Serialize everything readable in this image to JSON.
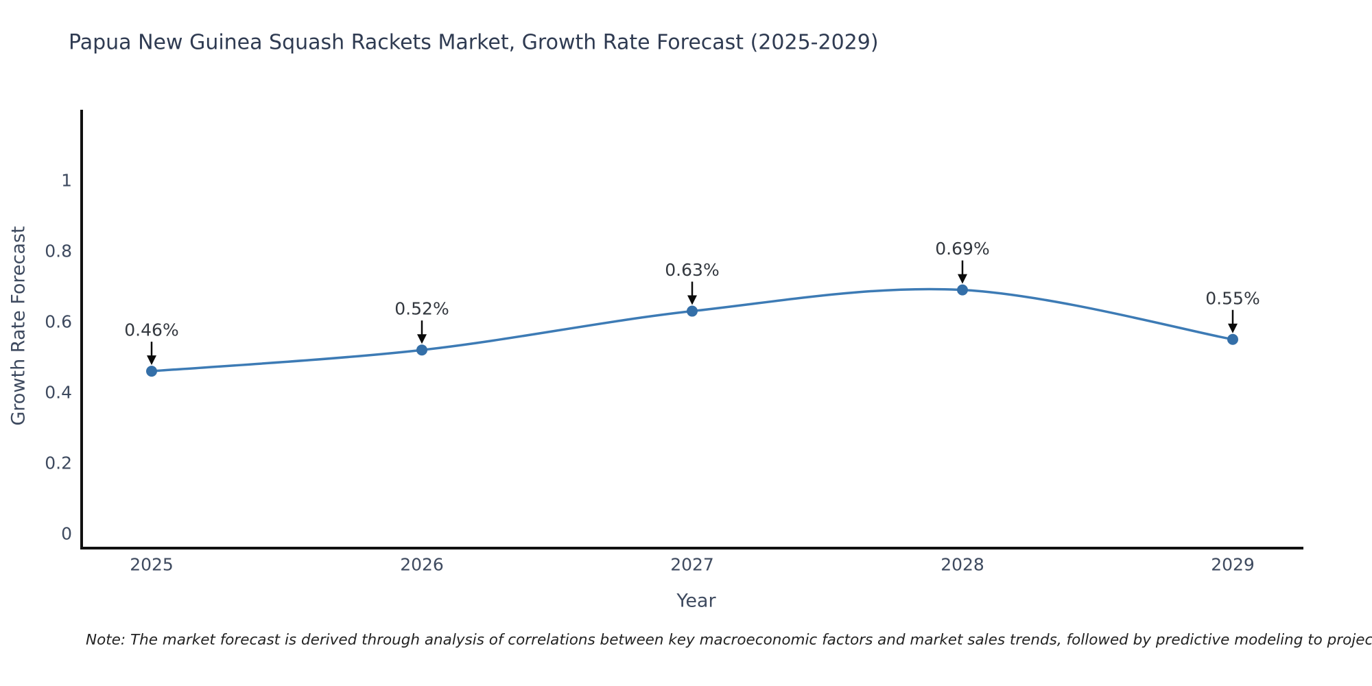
{
  "title": "Papua New Guinea Squash Rackets Market, Growth Rate Forecast (2025-2029)",
  "note": "Note: The market forecast is derived through analysis of correlations between key macroeconomic factors and market sales trends, followed by predictive modeling to project future sales",
  "chart_data": {
    "type": "line",
    "title": "Papua New Guinea Squash Rackets Market, Growth Rate Forecast (2025-2029)",
    "xlabel": "Year",
    "ylabel": "Growth Rate Forecast",
    "x": [
      2025,
      2026,
      2027,
      2028,
      2029
    ],
    "x_tick_labels": [
      "2025",
      "2026",
      "2027",
      "2028",
      "2029"
    ],
    "values": [
      0.46,
      0.52,
      0.63,
      0.69,
      0.55
    ],
    "point_labels": [
      "0.46%",
      "0.52%",
      "0.63%",
      "0.69%",
      "0.55%"
    ],
    "y_ticks": [
      0,
      0.2,
      0.4,
      0.6,
      0.8,
      1
    ],
    "y_tick_labels": [
      "0",
      "0.2",
      "0.4",
      "0.6",
      "0.8",
      "1"
    ],
    "ylim": [
      -0.04,
      1.2
    ],
    "xlim": [
      2024.74,
      2029.26
    ],
    "grid": false,
    "legend": "none",
    "curve_style": "smooth-spline",
    "annotation_style": "value-labels-with-down-arrows",
    "colors": {
      "line": "#3d7bb5",
      "marker": "#346fa8",
      "annotation_text": "#33383f",
      "arrow": "#0a0a0a",
      "axis_tick_text": "#3e4a5f",
      "axis_title_text": "#3e4a5f",
      "chart_title_text": "#2f3b52",
      "spine": "#111111",
      "note_text": "#222222",
      "background": "#ffffff"
    }
  }
}
